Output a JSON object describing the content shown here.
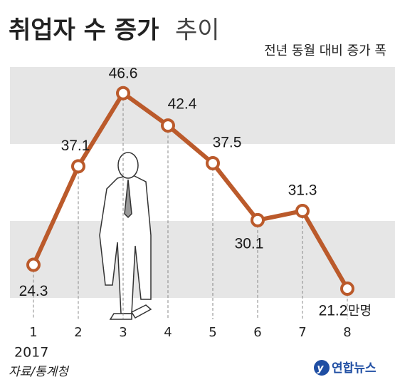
{
  "chart_data": {
    "type": "line",
    "title": "취업자 수 증가",
    "title_suffix": "추이",
    "subtitle": "전년 동월 대비 증가 폭",
    "categories": [
      "1",
      "2",
      "3",
      "4",
      "5",
      "6",
      "7",
      "8"
    ],
    "year": "2017",
    "values": [
      24.3,
      37.1,
      46.6,
      42.4,
      37.5,
      30.1,
      31.3,
      21.2
    ],
    "unit": "만명",
    "color": "#bb5a2b",
    "ylim": [
      20,
      50
    ],
    "bands": [
      [
        20,
        30
      ],
      [
        40,
        50
      ]
    ],
    "source": "자료/통계청",
    "logo": "연합뉴스"
  }
}
